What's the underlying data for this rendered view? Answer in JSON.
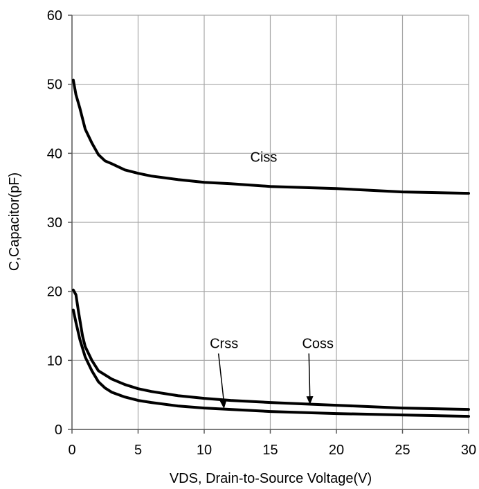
{
  "chart_data": {
    "type": "line",
    "title": "",
    "xlabel": "VDS, Drain-to-Source Voltage(V)",
    "ylabel": "C,Capacitor(pF)",
    "xlim": [
      0,
      30
    ],
    "ylim": [
      0,
      60
    ],
    "xticks": [
      "0",
      "5",
      "10",
      "15",
      "20",
      "25",
      "30"
    ],
    "yticks": [
      "0",
      "10",
      "20",
      "30",
      "40",
      "50",
      "60"
    ],
    "grid": true,
    "legend": "none",
    "line_color": "#000000",
    "grid_color": "#a6a6a6",
    "series": [
      {
        "name": "Ciss",
        "x": [
          0.1,
          0.3,
          0.6,
          1.0,
          1.5,
          2.0,
          2.5,
          3.0,
          4.0,
          5.0,
          6.0,
          8.0,
          10.0,
          12.0,
          15.0,
          20.0,
          25.0,
          30.0
        ],
        "y": [
          50.6,
          48.5,
          46.5,
          43.5,
          41.5,
          39.8,
          38.9,
          38.5,
          37.6,
          37.1,
          36.7,
          36.2,
          35.8,
          35.6,
          35.2,
          34.9,
          34.4,
          34.2
        ]
      },
      {
        "name": "Coss",
        "x": [
          0.1,
          0.3,
          0.5,
          0.8,
          1.0,
          1.5,
          2.0,
          3.0,
          4.0,
          5.0,
          6.0,
          8.0,
          10.0,
          12.0,
          15.0,
          20.0,
          25.0,
          30.0
        ],
        "y": [
          20.2,
          19.5,
          17.0,
          13.5,
          12.0,
          10.0,
          8.5,
          7.3,
          6.5,
          5.9,
          5.5,
          4.9,
          4.5,
          4.2,
          3.9,
          3.5,
          3.1,
          2.9
        ]
      },
      {
        "name": "Crss",
        "x": [
          0.1,
          0.3,
          0.6,
          1.0,
          1.5,
          2.0,
          2.5,
          3.0,
          4.0,
          5.0,
          6.0,
          8.0,
          10.0,
          12.0,
          15.0,
          20.0,
          25.0,
          30.0
        ],
        "y": [
          17.3,
          15.5,
          13.0,
          10.5,
          8.5,
          6.9,
          6.0,
          5.4,
          4.7,
          4.2,
          3.9,
          3.4,
          3.1,
          2.9,
          2.6,
          2.3,
          2.1,
          1.9
        ]
      }
    ],
    "annotations": [
      {
        "text": "Ciss",
        "x": 14.5,
        "y": 39.5,
        "arrow_to": null
      },
      {
        "text": "Crss",
        "x": 11.5,
        "y": 12.5,
        "arrow_to": [
          11.5,
          3.0
        ]
      },
      {
        "text": "Coss",
        "x": 18.6,
        "y": 12.5,
        "arrow_to": [
          18.0,
          3.6
        ]
      }
    ]
  }
}
